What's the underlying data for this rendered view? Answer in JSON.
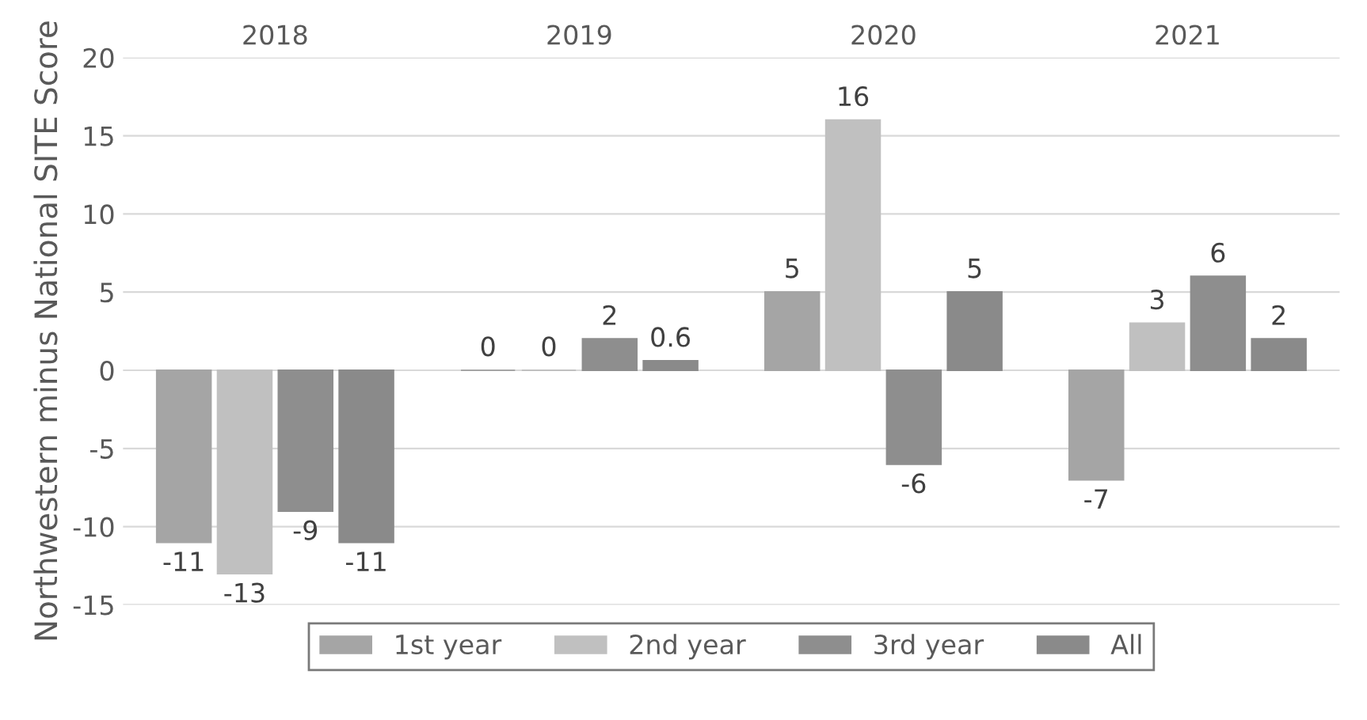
{
  "chart_data": {
    "type": "bar",
    "ylabel": "Northwestern minus National SITE Score",
    "categories": [
      "2018",
      "2019",
      "2020",
      "2021"
    ],
    "series": [
      {
        "name": "1st year",
        "color": "#a5a5a5",
        "values": [
          -11,
          0,
          5,
          -7
        ]
      },
      {
        "name": "2nd year",
        "color": "#c0c0c0",
        "values": [
          -13,
          0,
          16,
          3
        ]
      },
      {
        "name": "3rd year",
        "color": "#8e8e8e",
        "values": [
          -9,
          2,
          -6,
          6
        ]
      },
      {
        "name": "All",
        "color": "#8a8a8a",
        "values": [
          -11,
          0.6,
          5,
          2
        ]
      }
    ],
    "ylim": [
      -15,
      20
    ],
    "yticks": [
      -15,
      -10,
      -5,
      0,
      5,
      10,
      15,
      20
    ],
    "grid": "y",
    "legend": "bottom",
    "data_labels": true
  }
}
